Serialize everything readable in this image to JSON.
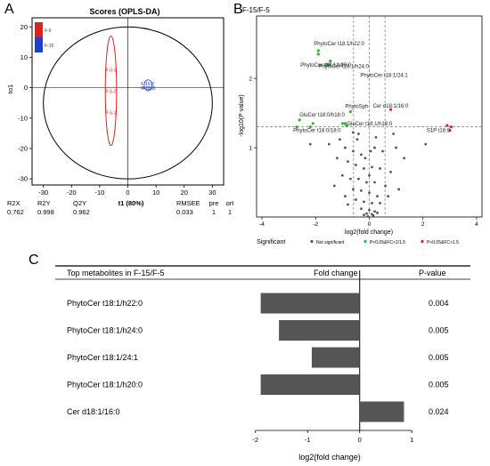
{
  "panel_letters": {
    "a": "A",
    "b": "B",
    "c": "C"
  },
  "colors": {
    "red": "#e02020",
    "blue": "#1f3fd0",
    "green": "#2fb52f",
    "grey_point": "#555555",
    "bar": "#555555"
  },
  "chart_data": [
    {
      "type": "scatter",
      "title": "Scores (OPLS-DA)",
      "xlabel": "t1 (80%)",
      "ylabel": "to1",
      "xlim": [
        -34,
        34
      ],
      "ylim": [
        -32,
        23
      ],
      "xticks": [
        "-30",
        "-20",
        "-10",
        "0",
        "10",
        "20",
        "30"
      ],
      "yticks": [
        "20",
        "10",
        "0",
        "-10",
        "-20",
        "-30"
      ],
      "legend": [
        "F-5",
        "F-15"
      ],
      "series": [
        {
          "name": "F-5",
          "color": "#e02020",
          "points": [
            {
              "label": "F-5-3",
              "x": -6,
              "y": 6
            },
            {
              "label": "F-5-2",
              "x": -6,
              "y": -1
            },
            {
              "label": "F-5-1",
              "x": -6,
              "y": -8
            }
          ]
        },
        {
          "name": "F-15",
          "color": "#1f3fd0",
          "points": [
            {
              "label": "F-15-3",
              "x": 7,
              "y": 1.5
            },
            {
              "label": "F-15-2",
              "x": 7,
              "y": 0
            },
            {
              "label": "F-15-1",
              "x": 7.5,
              "y": 0
            }
          ]
        }
      ],
      "stats": {
        "headers": [
          "R2X",
          "R2Y",
          "Q2Y",
          "RMSEE",
          "pre",
          "ort"
        ],
        "values": [
          "0.762",
          "0.998",
          "0.962",
          "0.033",
          "1",
          "1"
        ]
      }
    },
    {
      "type": "scatter",
      "title": "F-15/F-5",
      "xlabel": "log2(fold change)",
      "ylabel": "-log10(P value)",
      "xlim": [
        -4.2,
        4.2
      ],
      "ylim": [
        0,
        2.9
      ],
      "xticks": [
        "-4",
        "-2",
        "0",
        "2",
        "4"
      ],
      "yticks": [
        "1",
        "2"
      ],
      "thresholds": {
        "vertical": [
          -0.585,
          0,
          0.585
        ],
        "horizontal": 1.301
      },
      "legend_title": "Significant",
      "legend": [
        {
          "label": "Not significant",
          "color": "#555555"
        },
        {
          "label": "P<0.05&FC<1/1.5",
          "color": "#2fb52f"
        },
        {
          "label": "P<0.05&FC>1.5",
          "color": "#e02020"
        }
      ],
      "labeled_points": [
        {
          "label": "PhytoCer t18:1/h22:0",
          "x": -1.9,
          "y": 2.4,
          "class": "down"
        },
        {
          "label": "PhytoCer t18:1/h24:0",
          "x": -1.5,
          "y": 2.2,
          "class": "down"
        },
        {
          "label": "PhytoCer t18:1/h20:0",
          "x": -1.9,
          "y": 2.35,
          "class": "down"
        },
        {
          "label": "PhytoCer t18:1/24:1",
          "x": -1.0,
          "y": 2.2,
          "class": "down"
        },
        {
          "label": "Cer d18:1/16:0",
          "x": 0.8,
          "y": 1.55,
          "class": "up"
        },
        {
          "label": "PhytoSph",
          "x": -0.7,
          "y": 1.52,
          "class": "down"
        },
        {
          "label": "GluCer t18:0/h18:0",
          "x": -2.6,
          "y": 1.4,
          "class": "down"
        },
        {
          "label": "GluCer t18:1/h18:0",
          "x": -0.9,
          "y": 1.35,
          "class": "down"
        },
        {
          "label": "PhytoCer t18:0/18:0",
          "x": -2.7,
          "y": 1.3,
          "class": "down"
        },
        {
          "label": "S1P t18:0",
          "x": 3.0,
          "y": 1.25,
          "class": "up"
        }
      ],
      "extra_sig_points": [
        {
          "x": -1.45,
          "y": 2.25,
          "class": "down"
        },
        {
          "x": -1.6,
          "y": 2.2,
          "class": "down"
        },
        {
          "x": -2.1,
          "y": 1.35,
          "class": "down"
        },
        {
          "x": -2.2,
          "y": 1.3,
          "class": "down"
        },
        {
          "x": -1.0,
          "y": 1.35,
          "class": "down"
        },
        {
          "x": -0.85,
          "y": 1.32,
          "class": "down"
        },
        {
          "x": 2.9,
          "y": 1.32,
          "class": "up"
        },
        {
          "x": 3.05,
          "y": 1.3,
          "class": "up"
        }
      ],
      "nonsig_points": [
        [
          -0.6,
          1.22
        ],
        [
          -0.4,
          1.2
        ],
        [
          0.9,
          1.2
        ],
        [
          2.1,
          1.05
        ],
        [
          -2.2,
          1.05
        ],
        [
          -1.5,
          1.05
        ],
        [
          -0.9,
          1.0
        ],
        [
          -0.6,
          0.95
        ],
        [
          -0.3,
          0.9
        ],
        [
          0.2,
          1.0
        ],
        [
          0.5,
          0.95
        ],
        [
          1.0,
          1.0
        ],
        [
          1.3,
          0.85
        ],
        [
          -1.2,
          0.85
        ],
        [
          -0.8,
          0.8
        ],
        [
          -0.5,
          0.75
        ],
        [
          -0.2,
          0.7
        ],
        [
          0.1,
          0.72
        ],
        [
          0.4,
          0.7
        ],
        [
          0.8,
          0.65
        ],
        [
          -1.0,
          0.6
        ],
        [
          -0.7,
          0.55
        ],
        [
          -0.4,
          0.55
        ],
        [
          -0.1,
          0.5
        ],
        [
          0.2,
          0.5
        ],
        [
          0.6,
          0.45
        ],
        [
          -0.6,
          0.4
        ],
        [
          -0.3,
          0.38
        ],
        [
          0.0,
          0.35
        ],
        [
          0.3,
          0.3
        ],
        [
          -0.5,
          0.25
        ],
        [
          -0.2,
          0.22
        ],
        [
          0.1,
          0.2
        ],
        [
          0.4,
          0.2
        ],
        [
          -0.8,
          0.18
        ],
        [
          -0.3,
          0.12
        ],
        [
          0.0,
          0.1
        ],
        [
          0.2,
          0.08
        ],
        [
          -0.1,
          0.05
        ],
        [
          0.1,
          0.04
        ],
        [
          -0.2,
          0.03
        ],
        [
          0.3,
          0.06
        ],
        [
          -0.9,
          0.3
        ],
        [
          0.7,
          0.3
        ],
        [
          -1.3,
          0.45
        ],
        [
          1.1,
          0.4
        ],
        [
          0.0,
          0.6
        ],
        [
          -0.15,
          0.85
        ],
        [
          0.05,
          0.95
        ],
        [
          -0.45,
          1.12
        ],
        [
          0.25,
          1.15
        ],
        [
          -1.1,
          1.12
        ],
        [
          0.15,
          0.02
        ],
        [
          -0.05,
          0.01
        ]
      ]
    },
    {
      "type": "bar",
      "orientation": "horizontal",
      "header": {
        "col1": "Top metabolites in F-15/F-5",
        "col2": "Fold change",
        "col3": "P-value"
      },
      "categories": [
        "PhytoCer t18:1/h22:0",
        "PhytoCer t18:1/h24:0",
        "PhytoCer t18:1/24:1",
        "PhytoCer t18:1/h20:0",
        "Cer d18:1/16:0"
      ],
      "values": [
        -1.9,
        -1.55,
        -0.92,
        -1.9,
        0.85
      ],
      "pvalues": [
        "0.004",
        "0.005",
        "0.005",
        "0.005",
        "0.024"
      ],
      "xlabel": "log2(fold change)",
      "xlim": [
        -2.15,
        1.15
      ],
      "xticks": [
        "-2",
        "-1",
        "0",
        "1"
      ]
    }
  ]
}
